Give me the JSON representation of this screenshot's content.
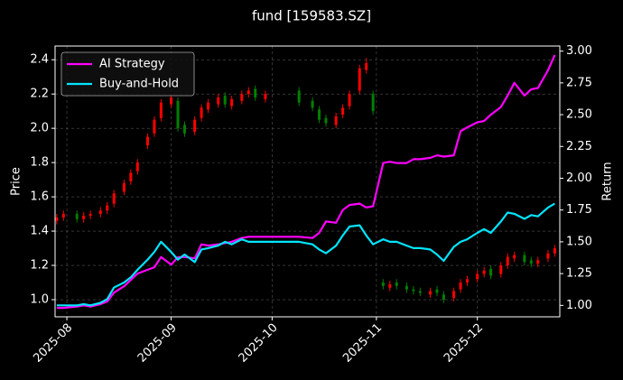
{
  "chart_data": {
    "type": "candlestick-returns",
    "title": "fund [159583.SZ]",
    "ylabel": "Price",
    "y2label": "Return",
    "x": [
      -3,
      -1,
      3,
      5,
      7,
      10,
      12,
      14,
      17,
      19,
      21,
      24,
      26,
      28,
      31,
      33,
      35,
      38,
      40,
      42,
      45,
      47,
      49,
      52,
      54,
      56,
      59,
      69,
      73,
      75,
      77,
      80,
      82,
      84,
      87,
      89,
      91,
      94,
      96,
      98,
      101,
      103,
      105,
      108,
      110,
      112,
      115,
      117,
      119,
      122,
      124,
      126,
      129,
      131,
      133,
      136,
      138,
      140,
      143,
      145
    ],
    "xlim": [
      -3.5,
      146.5
    ],
    "xticks": [
      {
        "value": 0,
        "label": "2025-08"
      },
      {
        "value": 31,
        "label": "2025-09"
      },
      {
        "value": 61,
        "label": "2025-10"
      },
      {
        "value": 92,
        "label": "2025-11"
      },
      {
        "value": 122,
        "label": "2025-12"
      }
    ],
    "ylim": [
      0.9,
      2.48
    ],
    "yticks": [
      {
        "value": 1,
        "label": "1.0"
      },
      1.2,
      1.4,
      1.6,
      1.8,
      {
        "value": 2,
        "label": "2.0"
      },
      2.2,
      2.4
    ],
    "y2lim": [
      0.91,
      3.04
    ],
    "y2ticks": [
      {
        "value": 1,
        "label": "1.00"
      },
      1.25,
      {
        "value": 1.5,
        "label": "1.50"
      },
      1.75,
      {
        "value": 2,
        "label": "2.00"
      },
      2.25,
      {
        "value": 2.5,
        "label": "2.50"
      },
      2.75,
      {
        "value": 3,
        "label": "3.00"
      }
    ],
    "grid": true,
    "legend": "upper left",
    "up_color": "#ff0000",
    "down_color": "#008000",
    "candles": {
      "open": [
        1.46,
        1.48,
        1.5,
        1.47,
        1.49,
        1.5,
        1.52,
        1.56,
        1.63,
        1.69,
        1.75,
        1.9,
        1.97,
        2.06,
        2.14,
        2.16,
        2.02,
        1.98,
        2.06,
        2.11,
        2.14,
        2.19,
        2.13,
        2.16,
        2.2,
        2.23,
        2.17,
        2.22,
        2.16,
        2.11,
        2.06,
        2.02,
        2.08,
        2.13,
        2.22,
        2.34,
        2.2,
        1.1,
        1.07,
        1.1,
        1.08,
        1.06,
        1.05,
        1.03,
        1.06,
        1.03,
        1.01,
        1.06,
        1.1,
        1.12,
        1.15,
        1.18,
        1.15,
        1.2,
        1.24,
        1.26,
        1.23,
        1.21,
        1.24,
        1.27
      ],
      "high": [
        1.5,
        1.52,
        1.52,
        1.51,
        1.52,
        1.54,
        1.57,
        1.64,
        1.7,
        1.76,
        1.82,
        1.97,
        2.07,
        2.17,
        2.2,
        2.18,
        2.04,
        2.07,
        2.14,
        2.17,
        2.2,
        2.21,
        2.19,
        2.22,
        2.24,
        2.25,
        2.22,
        2.24,
        2.18,
        2.13,
        2.08,
        2.09,
        2.14,
        2.22,
        2.37,
        2.41,
        2.22,
        1.12,
        1.11,
        1.12,
        1.1,
        1.08,
        1.07,
        1.07,
        1.08,
        1.05,
        1.07,
        1.12,
        1.14,
        1.17,
        1.19,
        1.2,
        1.22,
        1.27,
        1.28,
        1.28,
        1.25,
        1.25,
        1.29,
        1.32
      ],
      "low": [
        1.44,
        1.46,
        1.45,
        1.45,
        1.47,
        1.48,
        1.5,
        1.54,
        1.61,
        1.67,
        1.73,
        1.88,
        1.95,
        2.04,
        2.12,
        1.98,
        1.95,
        1.96,
        2.04,
        2.09,
        2.12,
        2.12,
        2.11,
        2.14,
        2.18,
        2.16,
        2.15,
        2.13,
        2.1,
        2.03,
        2.01,
        2.0,
        2.06,
        2.11,
        2.2,
        2.32,
        2.08,
        1.06,
        1.05,
        1.06,
        1.04,
        1.03,
        1.02,
        1.01,
        1.02,
        0.98,
        0.99,
        1.04,
        1.08,
        1.1,
        1.13,
        1.12,
        1.13,
        1.18,
        1.22,
        1.2,
        1.19,
        1.19,
        1.22,
        1.25
      ],
      "close": [
        1.48,
        1.5,
        1.47,
        1.49,
        1.5,
        1.52,
        1.55,
        1.62,
        1.68,
        1.74,
        1.8,
        1.95,
        2.05,
        2.15,
        2.18,
        2.0,
        1.97,
        2.05,
        2.12,
        2.15,
        2.18,
        2.14,
        2.17,
        2.2,
        2.22,
        2.18,
        2.2,
        2.15,
        2.12,
        2.05,
        2.03,
        2.07,
        2.12,
        2.2,
        2.35,
        2.38,
        2.1,
        1.08,
        1.09,
        1.08,
        1.06,
        1.05,
        1.04,
        1.05,
        1.04,
        1.0,
        1.05,
        1.1,
        1.12,
        1.15,
        1.17,
        1.14,
        1.2,
        1.25,
        1.26,
        1.22,
        1.21,
        1.23,
        1.27,
        1.3
      ]
    },
    "series": [
      {
        "name": "AI Strategy",
        "color": "#ff00ff",
        "axis": "y2",
        "values": [
          0.98,
          0.98,
          0.99,
          1.0,
          0.99,
          1.01,
          1.03,
          1.1,
          1.15,
          1.2,
          1.25,
          1.28,
          1.3,
          1.38,
          1.32,
          1.38,
          1.38,
          1.37,
          1.48,
          1.47,
          1.48,
          1.49,
          1.5,
          1.53,
          1.54,
          1.54,
          1.54,
          1.54,
          1.53,
          1.57,
          1.66,
          1.65,
          1.75,
          1.79,
          1.8,
          1.77,
          1.78,
          2.12,
          2.13,
          2.12,
          2.12,
          2.15,
          2.15,
          2.16,
          2.18,
          2.17,
          2.18,
          2.37,
          2.4,
          2.44,
          2.45,
          2.5,
          2.56,
          2.65,
          2.75,
          2.65,
          2.7,
          2.71,
          2.85,
          2.97
        ]
      },
      {
        "name": "Buy-and-Hold",
        "color": "#00e5ff",
        "axis": "y2",
        "values": [
          1.0,
          1.0,
          1.0,
          1.01,
          1.0,
          1.02,
          1.05,
          1.14,
          1.18,
          1.22,
          1.28,
          1.36,
          1.42,
          1.5,
          1.42,
          1.36,
          1.4,
          1.34,
          1.44,
          1.45,
          1.47,
          1.5,
          1.48,
          1.52,
          1.5,
          1.5,
          1.5,
          1.5,
          1.48,
          1.44,
          1.41,
          1.47,
          1.55,
          1.62,
          1.63,
          1.55,
          1.48,
          1.52,
          1.5,
          1.5,
          1.47,
          1.45,
          1.45,
          1.44,
          1.4,
          1.35,
          1.46,
          1.5,
          1.52,
          1.57,
          1.6,
          1.57,
          1.66,
          1.73,
          1.72,
          1.68,
          1.71,
          1.7,
          1.77,
          1.8
        ]
      }
    ]
  }
}
